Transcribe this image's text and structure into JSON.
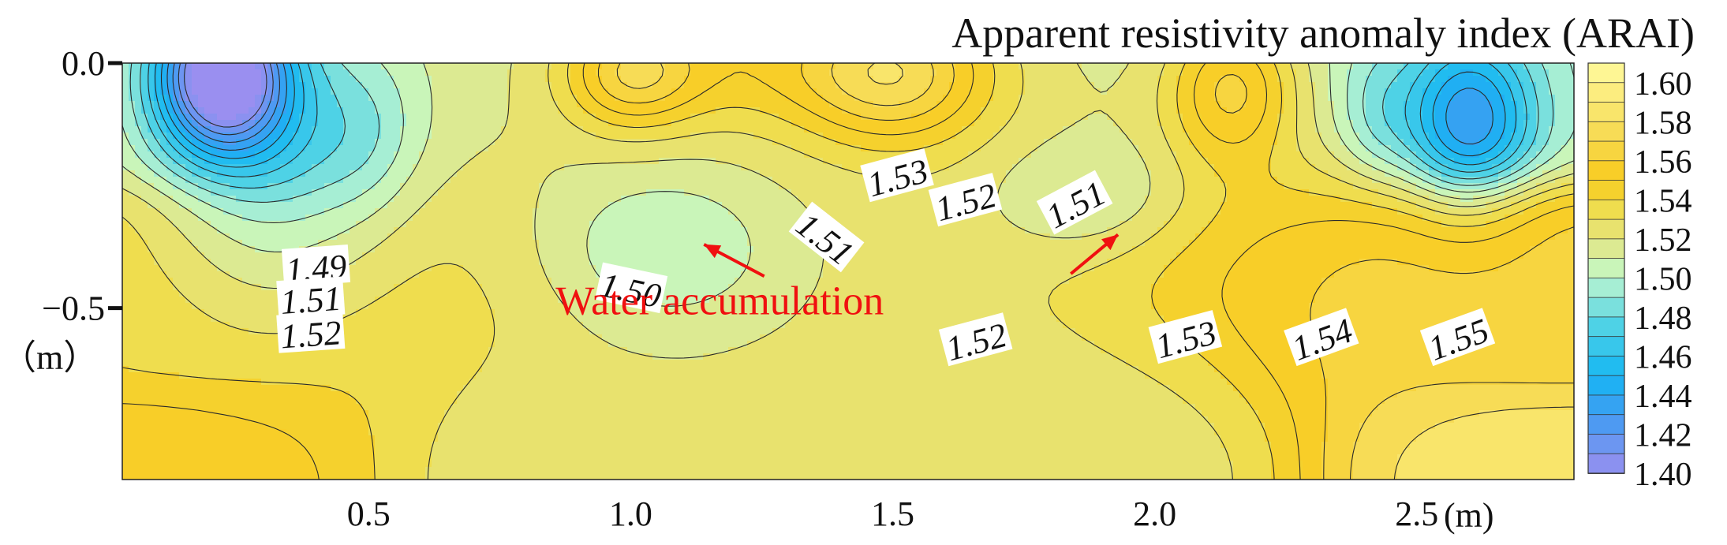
{
  "chart_data": {
    "type": "contour",
    "title": "Apparent resistivity anomaly index (ARAI)",
    "x_unit": "(m)",
    "y_unit": "（m）",
    "xlim": [
      0.03,
      2.8
    ],
    "ylim": [
      -0.85,
      0.0
    ],
    "x_ticks": [
      {
        "value": 0.5,
        "label": "0.5"
      },
      {
        "value": 1.0,
        "label": "1.0"
      },
      {
        "value": 1.5,
        "label": "1.5"
      },
      {
        "value": 2.0,
        "label": "2.0"
      },
      {
        "value": 2.5,
        "label": "2.5"
      }
    ],
    "y_ticks": [
      {
        "value": 0.0,
        "label": "0.0"
      },
      {
        "value": -0.5,
        "label": "−0.5"
      }
    ],
    "colorbar": {
      "min": 1.4,
      "max": 1.61,
      "step": 0.01,
      "tick_labels": [
        "1.60",
        "1.58",
        "1.56",
        "1.54",
        "1.52",
        "1.50",
        "1.48",
        "1.46",
        "1.44",
        "1.42",
        "1.40"
      ],
      "stops": [
        {
          "v": 1.4,
          "c": "#9a8ff0"
        },
        {
          "v": 1.43,
          "c": "#3f9cf2"
        },
        {
          "v": 1.45,
          "c": "#16b6f3"
        },
        {
          "v": 1.475,
          "c": "#4ed2e6"
        },
        {
          "v": 1.495,
          "c": "#a6eed4"
        },
        {
          "v": 1.505,
          "c": "#c9f5b9"
        },
        {
          "v": 1.52,
          "c": "#e5e57e"
        },
        {
          "v": 1.535,
          "c": "#efdd4e"
        },
        {
          "v": 1.55,
          "c": "#f8cb1c"
        },
        {
          "v": 1.57,
          "c": "#f6d84c"
        },
        {
          "v": 1.61,
          "c": "#fffa9e"
        }
      ]
    },
    "contour_labels": [
      {
        "x": 0.4,
        "y": -0.42,
        "text": "1.49",
        "angle": -4
      },
      {
        "x": 0.39,
        "y": -0.485,
        "text": "1.51",
        "angle": -4
      },
      {
        "x": 0.39,
        "y": -0.555,
        "text": "1.52",
        "angle": -4
      },
      {
        "x": 1.0,
        "y": -0.465,
        "text": "1.50",
        "angle": 12
      },
      {
        "x": 1.37,
        "y": -0.36,
        "text": "1.51",
        "angle": 38
      },
      {
        "x": 1.51,
        "y": -0.235,
        "text": "1.53",
        "angle": -15
      },
      {
        "x": 1.64,
        "y": -0.285,
        "text": "1.52",
        "angle": -15
      },
      {
        "x": 1.85,
        "y": -0.29,
        "text": "1.51",
        "angle": -28
      },
      {
        "x": 1.66,
        "y": -0.57,
        "text": "1.52",
        "angle": -15
      },
      {
        "x": 2.06,
        "y": -0.565,
        "text": "1.53",
        "angle": -15
      },
      {
        "x": 2.32,
        "y": -0.565,
        "text": "1.54",
        "angle": -20
      },
      {
        "x": 2.58,
        "y": -0.565,
        "text": "1.55",
        "angle": -20
      }
    ],
    "annotations": [
      {
        "text": "Water accumulation",
        "x": 1.17,
        "y": -0.49,
        "color": "#f01010",
        "arrows": [
          {
            "from": [
              1.255,
              -0.435
            ],
            "to": [
              1.14,
              -0.37
            ]
          },
          {
            "from": [
              1.84,
              -0.43
            ],
            "to": [
              1.93,
              -0.35
            ]
          }
        ]
      }
    ],
    "field_model": {
      "base": [
        {
          "x": 0.03,
          "y": 0.0,
          "v": 1.515
        },
        {
          "x": 0.03,
          "y": -0.5,
          "v": 1.54
        },
        {
          "x": 0.03,
          "y": -0.85,
          "v": 1.555
        },
        {
          "x": 1.0,
          "y": -0.85,
          "v": 1.525
        },
        {
          "x": 1.8,
          "y": -0.85,
          "v": 1.525
        },
        {
          "x": 2.8,
          "y": -0.85,
          "v": 1.585
        },
        {
          "x": 2.8,
          "y": -0.5,
          "v": 1.565
        },
        {
          "x": 2.8,
          "y": 0.0,
          "v": 1.505
        }
      ],
      "blobs": [
        {
          "x": 0.22,
          "y": -0.02,
          "sx": 0.09,
          "sy": 0.11,
          "a": -0.125
        },
        {
          "x": 0.32,
          "y": -0.22,
          "sx": 0.16,
          "sy": 0.2,
          "a": -0.04
        },
        {
          "x": 0.5,
          "y": -0.14,
          "sx": 0.07,
          "sy": 0.12,
          "a": -0.012
        },
        {
          "x": 1.0,
          "y": -0.02,
          "sx": 0.09,
          "sy": 0.08,
          "a": 0.045
        },
        {
          "x": 1.5,
          "y": -0.02,
          "sx": 0.13,
          "sy": 0.1,
          "a": 0.055
        },
        {
          "x": 1.2,
          "y": 0.0,
          "sx": 0.15,
          "sy": 0.09,
          "a": 0.02
        },
        {
          "x": 2.15,
          "y": -0.05,
          "sx": 0.09,
          "sy": 0.11,
          "a": 0.05
        },
        {
          "x": 1.05,
          "y": -0.38,
          "sx": 0.17,
          "sy": 0.12,
          "a": -0.025
        },
        {
          "x": 1.88,
          "y": -0.28,
          "sx": 0.14,
          "sy": 0.09,
          "a": -0.022
        },
        {
          "x": 1.4,
          "y": -0.3,
          "sx": 0.45,
          "sy": 0.22,
          "a": -0.008
        },
        {
          "x": 2.6,
          "y": -0.12,
          "sx": 0.09,
          "sy": 0.13,
          "a": -0.075
        },
        {
          "x": 2.42,
          "y": -0.1,
          "sx": 0.05,
          "sy": 0.1,
          "a": -0.015
        }
      ]
    }
  }
}
